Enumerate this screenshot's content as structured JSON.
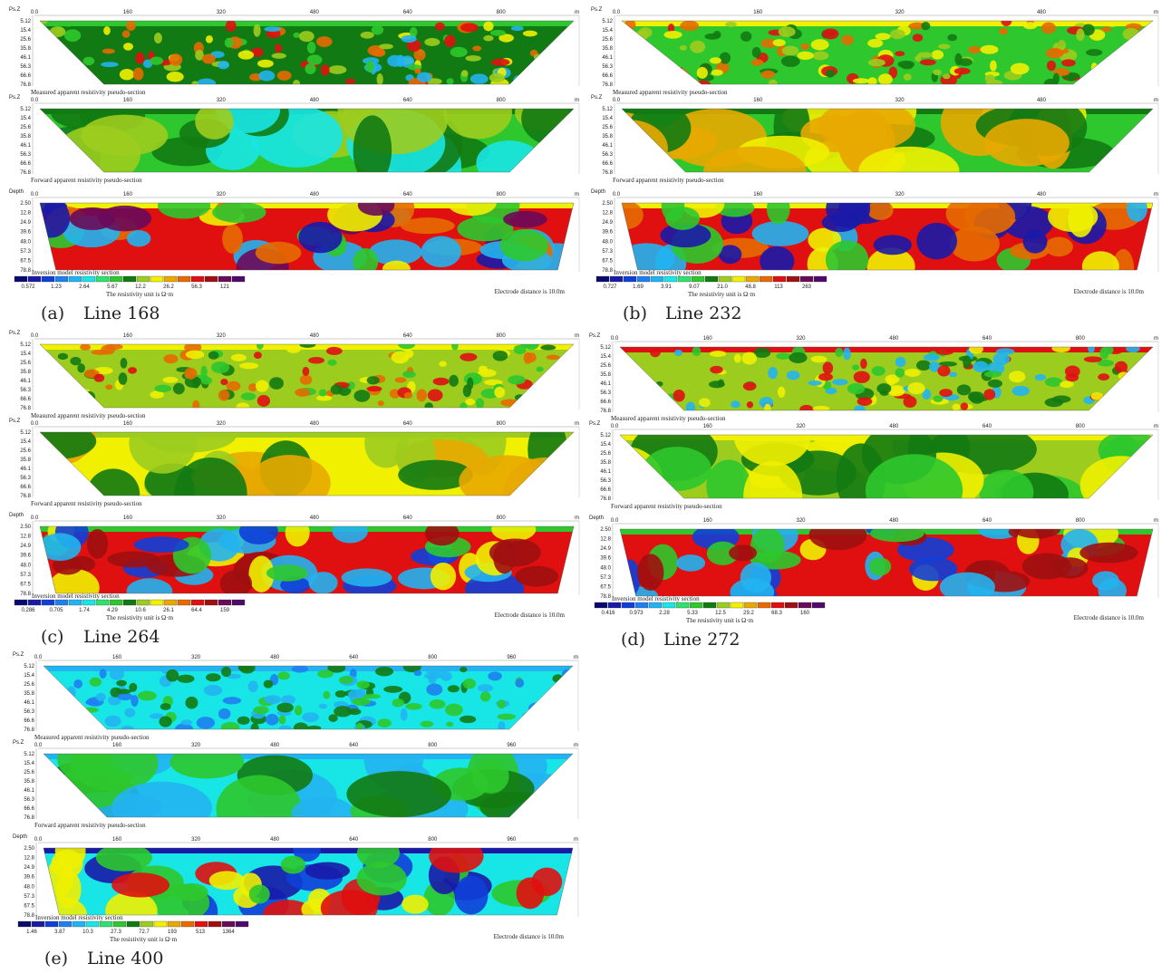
{
  "panels": [
    {
      "label": "(a)",
      "title": "Line 168",
      "sections": [
        {
          "axis_label": "Ps.Z",
          "x_ticks": [
            "0.0",
            "160",
            "320",
            "480",
            "640",
            "800"
          ],
          "x_unit": "m",
          "y_ticks": [
            "5.12",
            "15.4",
            "25.6",
            "35.8",
            "46.1",
            "56.3",
            "66.6",
            "76.8"
          ],
          "caption": "Measured apparent resistivity pseudo-section"
        },
        {
          "axis_label": "Ps.Z",
          "x_ticks": [
            "0.0",
            "160",
            "320",
            "480",
            "640",
            "800"
          ],
          "x_unit": "m",
          "y_ticks": [
            "5.12",
            "15.4",
            "25.6",
            "35.8",
            "46.1",
            "56.3",
            "66.6",
            "76.8"
          ],
          "caption": "Forward apparent resistivity pseudo-section"
        },
        {
          "axis_label": "Depth",
          "x_ticks": [
            "0.0",
            "160",
            "320",
            "480",
            "640",
            "800"
          ],
          "x_unit": "m",
          "y_ticks": [
            "2.50",
            "12.8",
            "24.9",
            "39.6",
            "48.0",
            "57.3",
            "67.5",
            "78.8"
          ],
          "caption": "Inversion model resistivity section"
        }
      ],
      "colorbar_labels": [
        "0.572",
        "1.23",
        "2.64",
        "5.67",
        "12.2",
        "26.2",
        "56.3",
        "121"
      ],
      "unit_text": "The resistivity unit is Ω·m",
      "electrode_text": "Electrode distance is 10.0m"
    },
    {
      "label": "(b)",
      "title": "Line 232",
      "sections": [
        {
          "axis_label": "Ps.Z",
          "x_ticks": [
            "0.0",
            "160",
            "320",
            "480"
          ],
          "x_unit": "m",
          "y_ticks": [
            "5.12",
            "15.4",
            "25.6",
            "35.8",
            "46.1",
            "56.3",
            "66.6",
            "76.8"
          ],
          "caption": "Measured apparent resistivity pseudo-section"
        },
        {
          "axis_label": "Ps.Z",
          "x_ticks": [
            "0.0",
            "160",
            "320",
            "480"
          ],
          "x_unit": "m",
          "y_ticks": [
            "5.12",
            "15.4",
            "25.6",
            "35.8",
            "46.1",
            "56.3",
            "66.6",
            "76.8"
          ],
          "caption": "Forward apparent resistivity pseudo-section"
        },
        {
          "axis_label": "Depth",
          "x_ticks": [
            "0.0",
            "160",
            "320",
            "480"
          ],
          "x_unit": "m",
          "y_ticks": [
            "2.50",
            "12.8",
            "24.9",
            "39.6",
            "48.0",
            "57.3",
            "67.5",
            "78.8"
          ],
          "caption": "Inversion model resistivity section"
        }
      ],
      "colorbar_labels": [
        "0.727",
        "1.69",
        "3.91",
        "9.07",
        "21.0",
        "48.8",
        "113",
        "263"
      ],
      "unit_text": "The resistivity unit is Ω·m",
      "electrode_text": "Electrode distance is 10.0m"
    },
    {
      "label": "(c)",
      "title": "Line 264",
      "sections": [
        {
          "axis_label": "Ps.Z",
          "x_ticks": [
            "0.0",
            "160",
            "320",
            "480",
            "640",
            "800"
          ],
          "x_unit": "m",
          "y_ticks": [
            "5.12",
            "15.4",
            "25.6",
            "35.8",
            "46.1",
            "56.3",
            "66.6",
            "76.8"
          ],
          "caption": "Measured apparent resistivity pseudo-section"
        },
        {
          "axis_label": "Ps.Z",
          "x_ticks": [
            "0.0",
            "160",
            "320",
            "480",
            "640",
            "800"
          ],
          "x_unit": "m",
          "y_ticks": [
            "5.12",
            "15.4",
            "25.6",
            "35.8",
            "46.1",
            "56.3",
            "66.6",
            "76.8"
          ],
          "caption": "Forward apparent resistivity pseudo-section"
        },
        {
          "axis_label": "Depth",
          "x_ticks": [
            "0.0",
            "160",
            "320",
            "480",
            "640",
            "800"
          ],
          "x_unit": "m",
          "y_ticks": [
            "2.50",
            "12.8",
            "24.9",
            "39.6",
            "48.0",
            "57.3",
            "67.5",
            "78.8"
          ],
          "caption": "Inversion model resistivity section"
        }
      ],
      "colorbar_labels": [
        "0.286",
        "0.705",
        "1.74",
        "4.29",
        "10.6",
        "26.1",
        "64.4",
        "159"
      ],
      "unit_text": "The resistivity unit is Ω·m",
      "electrode_text": "Electrode distance is 10.0m"
    },
    {
      "label": "(d)",
      "title": "Line 272",
      "sections": [
        {
          "axis_label": "Ps.Z",
          "x_ticks": [
            "0.0",
            "160",
            "320",
            "480",
            "640",
            "800"
          ],
          "x_unit": "m",
          "y_ticks": [
            "5.12",
            "15.4",
            "25.6",
            "35.8",
            "46.1",
            "56.3",
            "66.6",
            "76.8"
          ],
          "caption": "Measured apparent resistivity pseudo-section"
        },
        {
          "axis_label": "Ps.Z",
          "x_ticks": [
            "0.0",
            "160",
            "320",
            "480",
            "640",
            "800"
          ],
          "x_unit": "m",
          "y_ticks": [
            "5.12",
            "15.4",
            "25.6",
            "35.8",
            "46.1",
            "56.3",
            "66.6",
            "76.8"
          ],
          "caption": "Forward apparent resistivity pseudo-section"
        },
        {
          "axis_label": "Depth",
          "x_ticks": [
            "0.0",
            "160",
            "320",
            "480",
            "640",
            "800"
          ],
          "x_unit": "m",
          "y_ticks": [
            "2.50",
            "12.8",
            "24.9",
            "39.6",
            "48.0",
            "57.3",
            "67.5",
            "78.8"
          ],
          "caption": "Inversion model resistivity section"
        }
      ],
      "colorbar_labels": [
        "0.416",
        "0.973",
        "2.28",
        "5.33",
        "12.5",
        "29.2",
        "68.3",
        "160"
      ],
      "unit_text": "The resistivity unit is Ω·m",
      "electrode_text": "Electrode distance is 10.0m"
    },
    {
      "label": "(e)",
      "title": "Line 400",
      "sections": [
        {
          "axis_label": "Ps.Z",
          "x_ticks": [
            "0.0",
            "160",
            "320",
            "480",
            "640",
            "800",
            "960"
          ],
          "x_unit": "m",
          "y_ticks": [
            "5.12",
            "15.4",
            "25.6",
            "35.8",
            "46.1",
            "56.3",
            "66.6",
            "76.8"
          ],
          "caption": "Measured apparent resistivity pseudo-section"
        },
        {
          "axis_label": "Ps.Z",
          "x_ticks": [
            "0.0",
            "160",
            "320",
            "480",
            "640",
            "800",
            "960"
          ],
          "x_unit": "m",
          "y_ticks": [
            "5.12",
            "15.4",
            "25.6",
            "35.8",
            "46.1",
            "56.3",
            "66.6",
            "76.8"
          ],
          "caption": "Forward apparent resistivity pseudo-section"
        },
        {
          "axis_label": "Depth",
          "x_ticks": [
            "0.0",
            "160",
            "320",
            "480",
            "640",
            "800",
            "960"
          ],
          "x_unit": "m",
          "y_ticks": [
            "2.50",
            "12.8",
            "24.9",
            "39.6",
            "48.0",
            "57.3",
            "67.5",
            "78.8"
          ],
          "caption": "Inversion model resistivity section"
        }
      ],
      "colorbar_labels": [
        "1.46",
        "3.87",
        "10.3",
        "27.3",
        "72.7",
        "193",
        "513",
        "1364"
      ],
      "unit_text": "The resistivity unit is Ω·m",
      "electrode_text": "Electrode distance is 10.0m"
    }
  ]
}
